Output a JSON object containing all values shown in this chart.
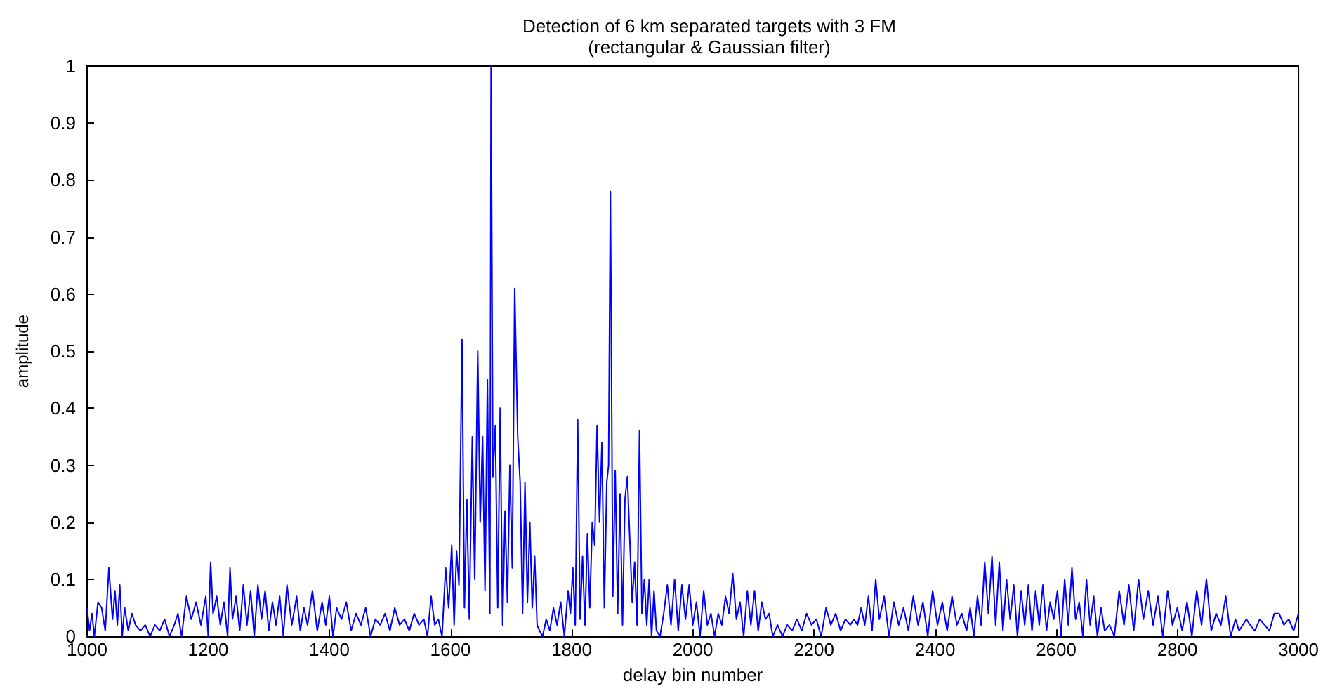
{
  "chart_data": {
    "type": "line",
    "title": "Detection of 6 km separated targets with 3 FM\n(rectangular & Gaussian filter)",
    "xlabel": "delay bin number",
    "ylabel": "amplitude",
    "xlim": [
      1000,
      3000
    ],
    "ylim": [
      0,
      1
    ],
    "xticks": [
      1000,
      1200,
      1400,
      1600,
      1800,
      2000,
      2200,
      2400,
      2600,
      2800,
      3000
    ],
    "yticks": [
      0,
      0.1,
      0.2,
      0.3,
      0.4,
      0.5,
      0.6,
      0.7,
      0.8,
      0.9,
      1
    ],
    "grid": false,
    "marker": "none",
    "line_style": "solid",
    "x": [
      1000,
      1004,
      1008,
      1012,
      1018,
      1024,
      1030,
      1036,
      1042,
      1046,
      1050,
      1054,
      1058,
      1062,
      1068,
      1074,
      1080,
      1088,
      1096,
      1104,
      1112,
      1120,
      1128,
      1136,
      1144,
      1150,
      1156,
      1164,
      1172,
      1180,
      1188,
      1196,
      1200,
      1204,
      1208,
      1214,
      1220,
      1226,
      1232,
      1236,
      1240,
      1246,
      1252,
      1258,
      1264,
      1270,
      1276,
      1282,
      1288,
      1294,
      1300,
      1306,
      1312,
      1318,
      1324,
      1330,
      1338,
      1346,
      1352,
      1358,
      1364,
      1372,
      1380,
      1388,
      1394,
      1400,
      1406,
      1412,
      1420,
      1428,
      1436,
      1444,
      1452,
      1460,
      1468,
      1476,
      1484,
      1492,
      1500,
      1508,
      1516,
      1524,
      1532,
      1540,
      1548,
      1556,
      1562,
      1568,
      1574,
      1580,
      1586,
      1592,
      1597,
      1602,
      1606,
      1610,
      1614,
      1619,
      1623,
      1627,
      1631,
      1636,
      1640,
      1645,
      1649,
      1653,
      1657,
      1661,
      1665,
      1667,
      1670,
      1674,
      1678,
      1682,
      1686,
      1690,
      1694,
      1698,
      1702,
      1706,
      1711,
      1715,
      1719,
      1723,
      1727,
      1731,
      1735,
      1739,
      1743,
      1747,
      1752,
      1758,
      1764,
      1770,
      1776,
      1782,
      1788,
      1794,
      1798,
      1802,
      1806,
      1810,
      1814,
      1818,
      1822,
      1826,
      1830,
      1834,
      1838,
      1842,
      1846,
      1850,
      1854,
      1858,
      1861,
      1864,
      1868,
      1872,
      1876,
      1880,
      1884,
      1888,
      1892,
      1896,
      1900,
      1904,
      1908,
      1912,
      1916,
      1920,
      1924,
      1928,
      1932,
      1936,
      1940,
      1946,
      1952,
      1958,
      1964,
      1970,
      1976,
      1982,
      1988,
      1994,
      2000,
      2006,
      2012,
      2018,
      2024,
      2030,
      2036,
      2042,
      2048,
      2054,
      2060,
      2066,
      2072,
      2078,
      2084,
      2090,
      2096,
      2102,
      2108,
      2114,
      2120,
      2126,
      2132,
      2140,
      2148,
      2156,
      2164,
      2172,
      2180,
      2188,
      2196,
      2204,
      2212,
      2220,
      2228,
      2236,
      2244,
      2252,
      2260,
      2266,
      2272,
      2278,
      2284,
      2290,
      2296,
      2302,
      2308,
      2316,
      2324,
      2332,
      2340,
      2348,
      2356,
      2364,
      2372,
      2380,
      2388,
      2396,
      2404,
      2412,
      2420,
      2428,
      2436,
      2444,
      2452,
      2458,
      2464,
      2470,
      2476,
      2482,
      2488,
      2494,
      2500,
      2506,
      2512,
      2518,
      2524,
      2530,
      2536,
      2542,
      2548,
      2554,
      2560,
      2566,
      2572,
      2578,
      2584,
      2590,
      2596,
      2602,
      2608,
      2614,
      2620,
      2626,
      2632,
      2638,
      2644,
      2650,
      2656,
      2662,
      2668,
      2674,
      2680,
      2688,
      2696,
      2704,
      2712,
      2720,
      2728,
      2736,
      2744,
      2752,
      2760,
      2768,
      2776,
      2784,
      2792,
      2800,
      2808,
      2816,
      2824,
      2832,
      2840,
      2848,
      2856,
      2864,
      2872,
      2880,
      2888,
      2896,
      2902,
      2908,
      2914,
      2920,
      2928,
      2936,
      2944,
      2952,
      2960,
      2968,
      2976,
      2984,
      2992,
      3000
    ],
    "values": [
      0.05,
      0.01,
      0.04,
      0.0,
      0.06,
      0.05,
      0.01,
      0.12,
      0.03,
      0.08,
      0.02,
      0.09,
      0.0,
      0.05,
      0.01,
      0.04,
      0.02,
      0.01,
      0.02,
      0.0,
      0.02,
      0.01,
      0.03,
      0.0,
      0.02,
      0.04,
      0.0,
      0.07,
      0.03,
      0.06,
      0.02,
      0.07,
      0.0,
      0.13,
      0.04,
      0.07,
      0.02,
      0.06,
      0.0,
      0.12,
      0.03,
      0.07,
      0.01,
      0.09,
      0.02,
      0.08,
      0.0,
      0.09,
      0.03,
      0.08,
      0.01,
      0.06,
      0.02,
      0.07,
      0.0,
      0.09,
      0.02,
      0.07,
      0.01,
      0.05,
      0.02,
      0.08,
      0.01,
      0.06,
      0.02,
      0.07,
      0.0,
      0.05,
      0.03,
      0.06,
      0.01,
      0.04,
      0.02,
      0.05,
      0.0,
      0.03,
      0.02,
      0.04,
      0.01,
      0.05,
      0.02,
      0.03,
      0.01,
      0.04,
      0.02,
      0.03,
      0.0,
      0.07,
      0.02,
      0.03,
      0.0,
      0.12,
      0.05,
      0.16,
      0.02,
      0.15,
      0.09,
      0.52,
      0.05,
      0.24,
      0.03,
      0.35,
      0.1,
      0.5,
      0.2,
      0.35,
      0.08,
      0.45,
      0.04,
      1.0,
      0.28,
      0.37,
      0.05,
      0.4,
      0.02,
      0.22,
      0.06,
      0.3,
      0.12,
      0.61,
      0.35,
      0.27,
      0.04,
      0.27,
      0.06,
      0.2,
      0.05,
      0.14,
      0.02,
      0.01,
      0.0,
      0.03,
      0.01,
      0.05,
      0.02,
      0.06,
      0.0,
      0.08,
      0.04,
      0.12,
      0.02,
      0.38,
      0.03,
      0.14,
      0.02,
      0.18,
      0.05,
      0.2,
      0.16,
      0.37,
      0.2,
      0.34,
      0.05,
      0.27,
      0.3,
      0.78,
      0.07,
      0.29,
      0.04,
      0.25,
      0.02,
      0.24,
      0.28,
      0.17,
      0.06,
      0.13,
      0.02,
      0.36,
      0.04,
      0.1,
      0.02,
      0.1,
      0.0,
      0.08,
      0.01,
      0.0,
      0.04,
      0.09,
      0.02,
      0.1,
      0.01,
      0.09,
      0.03,
      0.09,
      0.02,
      0.06,
      0.0,
      0.08,
      0.02,
      0.04,
      0.0,
      0.04,
      0.02,
      0.07,
      0.04,
      0.11,
      0.03,
      0.06,
      0.0,
      0.08,
      0.02,
      0.08,
      0.01,
      0.06,
      0.03,
      0.04,
      0.0,
      0.02,
      0.0,
      0.02,
      0.01,
      0.03,
      0.01,
      0.04,
      0.02,
      0.03,
      0.0,
      0.05,
      0.02,
      0.04,
      0.01,
      0.03,
      0.02,
      0.03,
      0.02,
      0.05,
      0.02,
      0.07,
      0.01,
      0.1,
      0.03,
      0.07,
      0.0,
      0.06,
      0.02,
      0.05,
      0.01,
      0.07,
      0.02,
      0.06,
      0.0,
      0.08,
      0.02,
      0.06,
      0.01,
      0.07,
      0.02,
      0.04,
      0.01,
      0.05,
      0.0,
      0.07,
      0.02,
      0.13,
      0.04,
      0.14,
      0.02,
      0.13,
      0.01,
      0.1,
      0.03,
      0.09,
      0.0,
      0.08,
      0.02,
      0.09,
      0.01,
      0.08,
      0.02,
      0.09,
      0.01,
      0.06,
      0.03,
      0.08,
      0.0,
      0.1,
      0.02,
      0.12,
      0.03,
      0.06,
      0.0,
      0.1,
      0.02,
      0.07,
      0.0,
      0.05,
      0.01,
      0.02,
      0.0,
      0.08,
      0.02,
      0.09,
      0.01,
      0.1,
      0.03,
      0.08,
      0.02,
      0.07,
      0.0,
      0.08,
      0.02,
      0.05,
      0.01,
      0.06,
      0.0,
      0.08,
      0.02,
      0.1,
      0.01,
      0.04,
      0.02,
      0.07,
      0.0,
      0.03,
      0.01,
      0.02,
      0.03,
      0.02,
      0.01,
      0.03,
      0.02,
      0.01,
      0.04,
      0.04,
      0.02,
      0.03,
      0.01,
      0.04
    ]
  }
}
